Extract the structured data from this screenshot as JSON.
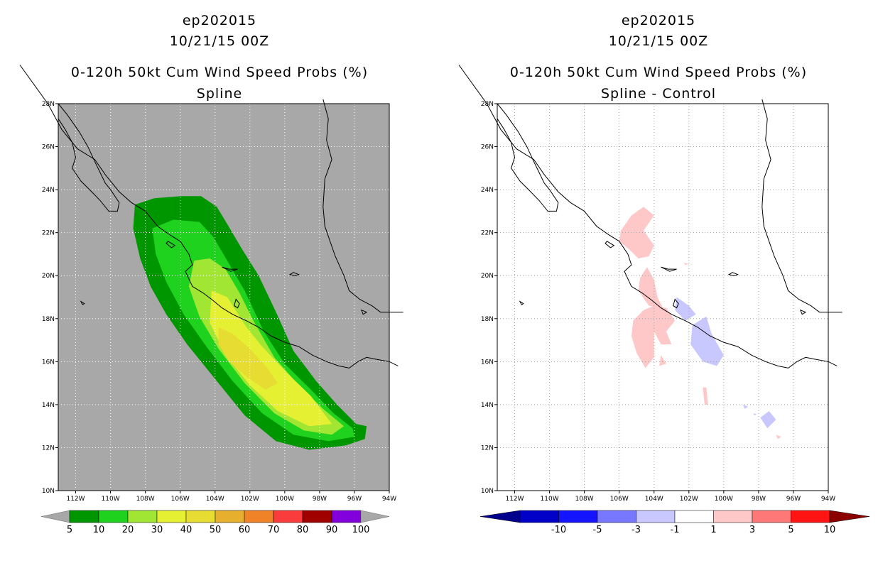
{
  "panels": [
    {
      "id": "left",
      "title_line1": "ep202015",
      "title_line2": "10/21/15 00Z",
      "title_line3": "0-120h 50kt Cum Wind Speed Probs (%)",
      "title_line4": "Spline",
      "background": "#a8a8a8",
      "grid_color": "#ffffff",
      "colorbar": {
        "labels": [
          "5",
          "10",
          "20",
          "30",
          "40",
          "50",
          "60",
          "70",
          "80",
          "90",
          "100"
        ],
        "colors": [
          "#009600",
          "#1ed21e",
          "#a0e632",
          "#e6f032",
          "#e6dc32",
          "#e6af2d",
          "#f08228",
          "#fa3c3c",
          "#a00000",
          "#8200dc"
        ],
        "arrow_color": "#a8a8a8"
      }
    },
    {
      "id": "right",
      "title_line1": "ep202015",
      "title_line2": "10/21/15 00Z",
      "title_line3": "0-120h 50kt Cum Wind Speed Probs (%)",
      "title_line4": "Spline - Control",
      "background": "#ffffff",
      "grid_color": "#a0a0a0",
      "colorbar": {
        "labels": [
          "-10",
          "-5",
          "-3",
          "-1",
          "1",
          "3",
          "5",
          "10"
        ],
        "colors": [
          "#0000c8",
          "#1414ff",
          "#7878ff",
          "#c8c8ff",
          "#ffffff",
          "#ffc8c8",
          "#ff7878",
          "#ff1414"
        ],
        "arrow_left_color": "#00008c",
        "arrow_right_color": "#8c0000"
      }
    }
  ],
  "map": {
    "lon_range": [
      -113,
      -94
    ],
    "lat_range": [
      10,
      28
    ],
    "lon_ticks": [
      "112W",
      "110W",
      "108W",
      "106W",
      "104W",
      "102W",
      "100W",
      "98W",
      "96W",
      "94W"
    ],
    "lat_ticks": [
      "10N",
      "12N",
      "14N",
      "16N",
      "18N",
      "20N",
      "22N",
      "24N",
      "26N",
      "28N"
    ]
  }
}
